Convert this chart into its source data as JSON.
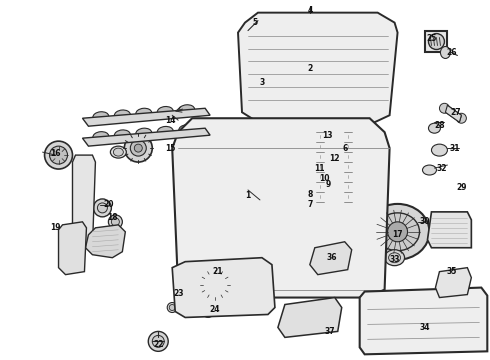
{
  "background_color": "#ffffff",
  "figsize": [
    4.9,
    3.6
  ],
  "dpi": 100,
  "line_color": "#2a2a2a",
  "part_labels": [
    [
      248,
      196,
      "1"
    ],
    [
      310,
      68,
      "2"
    ],
    [
      262,
      82,
      "3"
    ],
    [
      310,
      10,
      "4"
    ],
    [
      255,
      22,
      "5"
    ],
    [
      345,
      148,
      "6"
    ],
    [
      310,
      205,
      "7"
    ],
    [
      310,
      195,
      "8"
    ],
    [
      328,
      185,
      "9"
    ],
    [
      325,
      178,
      "10"
    ],
    [
      320,
      168,
      "11"
    ],
    [
      335,
      158,
      "12"
    ],
    [
      328,
      135,
      "13"
    ],
    [
      170,
      120,
      "14"
    ],
    [
      170,
      148,
      "15"
    ],
    [
      55,
      153,
      "16"
    ],
    [
      398,
      235,
      "17"
    ],
    [
      112,
      218,
      "18"
    ],
    [
      55,
      228,
      "19"
    ],
    [
      108,
      205,
      "20"
    ],
    [
      218,
      272,
      "21"
    ],
    [
      158,
      345,
      "22"
    ],
    [
      178,
      294,
      "23"
    ],
    [
      215,
      310,
      "24"
    ],
    [
      432,
      38,
      "25"
    ],
    [
      452,
      52,
      "26"
    ],
    [
      456,
      112,
      "27"
    ],
    [
      440,
      125,
      "28"
    ],
    [
      462,
      188,
      "29"
    ],
    [
      425,
      222,
      "30"
    ],
    [
      455,
      148,
      "31"
    ],
    [
      442,
      168,
      "32"
    ],
    [
      395,
      260,
      "33"
    ],
    [
      425,
      328,
      "34"
    ],
    [
      452,
      272,
      "35"
    ],
    [
      332,
      258,
      "36"
    ],
    [
      330,
      332,
      "37"
    ]
  ]
}
